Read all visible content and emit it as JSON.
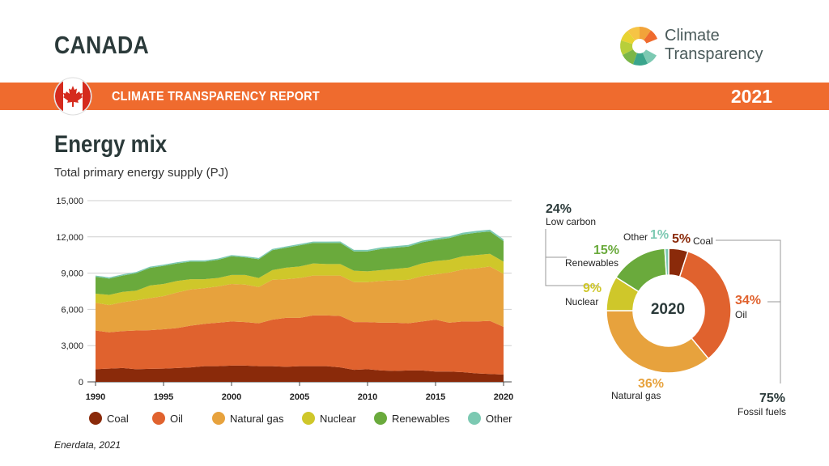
{
  "header": {
    "country": "CANADA",
    "brand_line1": "Climate",
    "brand_line2": "Transparency",
    "banner_title": "CLIMATE TRANSPARENCY REPORT",
    "banner_year": "2021"
  },
  "section": {
    "title": "Energy mix",
    "subtitle": "Total primary energy supply (PJ)"
  },
  "source": "Enerdata, 2021",
  "colors": {
    "banner": "#ef6b2e",
    "coal": "#8a2a0a",
    "oil": "#e0622e",
    "natural_gas": "#e7a23d",
    "nuclear": "#cfc72a",
    "renewables": "#6aaa3c",
    "other": "#7cc9b2"
  },
  "icons": [
    "canada-flag-icon",
    "climate-transparency-logo"
  ],
  "chart_data": [
    {
      "type": "area",
      "stacked": true,
      "x": [
        1990,
        1991,
        1992,
        1993,
        1994,
        1995,
        1996,
        1997,
        1998,
        1999,
        2000,
        2001,
        2002,
        2003,
        2004,
        2005,
        2006,
        2007,
        2008,
        2009,
        2010,
        2011,
        2012,
        2013,
        2014,
        2015,
        2016,
        2017,
        2018,
        2019,
        2020
      ],
      "x_ticks": [
        "1990",
        "1995",
        "2000",
        "2005",
        "2010",
        "2015",
        "2020"
      ],
      "y_ticks": [
        "0",
        "3,000",
        "6,000",
        "9,000",
        "12,000",
        "15,000"
      ],
      "ylim": [
        0,
        15000
      ],
      "grid": true,
      "legend_position": "bottom",
      "series": [
        {
          "name": "Coal",
          "color": "#8a2a0a",
          "values": [
            1050,
            1100,
            1150,
            1050,
            1080,
            1100,
            1150,
            1200,
            1300,
            1300,
            1350,
            1350,
            1300,
            1300,
            1250,
            1300,
            1300,
            1300,
            1200,
            1000,
            1050,
            950,
            900,
            950,
            950,
            850,
            850,
            800,
            700,
            650,
            600
          ]
        },
        {
          "name": "Oil",
          "color": "#e0622e",
          "values": [
            3200,
            3000,
            3050,
            3200,
            3200,
            3250,
            3300,
            3450,
            3500,
            3600,
            3650,
            3600,
            3550,
            3850,
            4050,
            4000,
            4200,
            4200,
            4250,
            3950,
            3900,
            3950,
            4000,
            3900,
            4050,
            4300,
            4050,
            4200,
            4300,
            4400,
            3950
          ]
        },
        {
          "name": "Natural gas",
          "color": "#e7a23d",
          "values": [
            2300,
            2250,
            2400,
            2500,
            2650,
            2750,
            2950,
            3000,
            2950,
            3000,
            3100,
            3100,
            3000,
            3300,
            3200,
            3300,
            3300,
            3300,
            3350,
            3300,
            3300,
            3450,
            3500,
            3600,
            3750,
            3750,
            4150,
            4300,
            4400,
            4500,
            4400
          ]
        },
        {
          "name": "Nuclear",
          "color": "#cfc72a",
          "values": [
            750,
            850,
            850,
            800,
            1050,
            1000,
            950,
            850,
            750,
            700,
            750,
            800,
            750,
            800,
            950,
            950,
            1000,
            950,
            950,
            950,
            900,
            900,
            950,
            1000,
            1050,
            1100,
            1050,
            1100,
            1100,
            1050,
            1000
          ]
        },
        {
          "name": "Renewables",
          "color": "#6aaa3c",
          "values": [
            1400,
            1350,
            1350,
            1450,
            1450,
            1500,
            1450,
            1450,
            1450,
            1500,
            1550,
            1450,
            1550,
            1650,
            1650,
            1750,
            1700,
            1750,
            1750,
            1600,
            1650,
            1750,
            1750,
            1750,
            1750,
            1750,
            1800,
            1800,
            1850,
            1850,
            1700
          ]
        },
        {
          "name": "Other",
          "color": "#7cc9b2",
          "values": [
            100,
            100,
            100,
            100,
            100,
            100,
            100,
            100,
            100,
            100,
            100,
            100,
            100,
            100,
            110,
            110,
            110,
            110,
            120,
            120,
            120,
            130,
            130,
            130,
            130,
            140,
            140,
            150,
            150,
            150,
            150
          ]
        }
      ]
    },
    {
      "type": "pie",
      "donut": true,
      "center_label": "2020",
      "slices": [
        {
          "name": "Coal",
          "value": 5,
          "label": "5%",
          "color": "#8a2a0a"
        },
        {
          "name": "Oil",
          "value": 34,
          "label": "34%",
          "color": "#e0622e"
        },
        {
          "name": "Natural gas",
          "value": 36,
          "label": "36%",
          "color": "#e7a23d"
        },
        {
          "name": "Nuclear",
          "value": 9,
          "label": "9%",
          "color": "#cfc72a"
        },
        {
          "name": "Renewables",
          "value": 15,
          "label": "15%",
          "color": "#6aaa3c"
        },
        {
          "name": "Other",
          "value": 1,
          "label": "1%",
          "color": "#7cc9b2"
        }
      ],
      "groups": [
        {
          "name": "Low carbon",
          "label": "24%"
        },
        {
          "name": "Fossil fuels",
          "label": "75%"
        }
      ]
    }
  ]
}
